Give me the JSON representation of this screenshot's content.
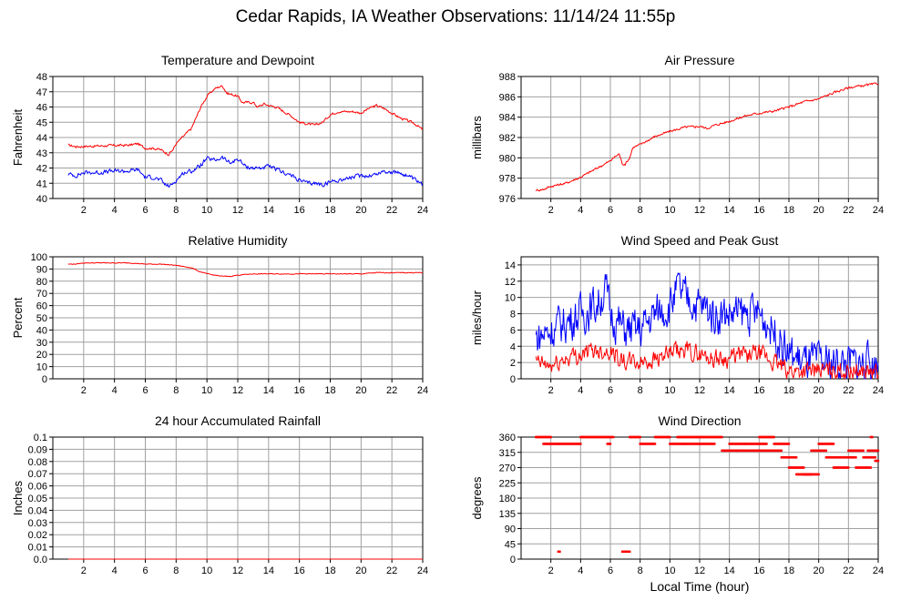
{
  "title": "Cedar Rapids, IA Weather Observations: 11/14/24 11:55p",
  "colors": {
    "red": "#ff0000",
    "blue": "#0000ff",
    "grid": "#a0a0a0",
    "frame": "#000000"
  },
  "chart_data": [
    {
      "type": "line",
      "title": "Temperature and Dewpoint",
      "ylabel": "Fahrenheit",
      "xlabel": "",
      "xlim": [
        0,
        24
      ],
      "ylim": [
        40,
        48
      ],
      "xticks": [
        "2",
        "4",
        "6",
        "8",
        "10",
        "12",
        "14",
        "16",
        "18",
        "20",
        "22",
        "24"
      ],
      "yticks": [
        "40",
        "41",
        "42",
        "43",
        "44",
        "45",
        "46",
        "47",
        "48"
      ],
      "series": [
        {
          "color": "#ff0000",
          "noise": 0.07,
          "x": [
            1,
            1.5,
            3,
            5,
            5.5,
            6,
            6.5,
            7,
            7.5,
            7.8,
            8,
            8.5,
            9,
            9.3,
            9.6,
            10,
            10.5,
            11,
            11.3,
            11.7,
            12,
            12.3,
            13,
            13.3,
            13.7,
            14,
            14.5,
            15,
            15.5,
            16,
            16.5,
            17,
            17.5,
            18,
            18.5,
            19,
            19.5,
            20,
            20.5,
            21,
            21.5,
            22,
            22.5,
            23,
            23.5,
            24
          ],
          "y": [
            43.5,
            43.4,
            43.45,
            43.5,
            43.6,
            43.3,
            43.3,
            43.2,
            42.9,
            43.2,
            43.6,
            44.1,
            44.6,
            45.3,
            46.0,
            46.7,
            47.2,
            47.4,
            46.9,
            46.8,
            46.7,
            46.3,
            46.3,
            46.0,
            46.2,
            46.1,
            46.0,
            45.7,
            45.4,
            45.0,
            44.9,
            44.8,
            45.0,
            45.5,
            45.7,
            45.7,
            45.7,
            45.6,
            45.9,
            46.1,
            45.9,
            45.6,
            45.3,
            45.1,
            44.9,
            44.5
          ]
        },
        {
          "color": "#0000ff",
          "noise": 0.12,
          "x": [
            1,
            1.5,
            2,
            3,
            4,
            5,
            5.5,
            6,
            6.5,
            7,
            7.3,
            7.6,
            8,
            8.5,
            9,
            9.5,
            10,
            10.5,
            11,
            11.5,
            12,
            12.5,
            13,
            13.5,
            14,
            14.5,
            15,
            15.5,
            16,
            16.5,
            17,
            17.5,
            18,
            18.5,
            19,
            19.5,
            20,
            20.5,
            21,
            21.5,
            22,
            22.5,
            23,
            23.5,
            24
          ],
          "y": [
            41.6,
            41.5,
            41.7,
            41.7,
            41.8,
            41.8,
            41.9,
            41.4,
            41.4,
            41.2,
            40.9,
            40.8,
            41.2,
            41.7,
            41.8,
            42.1,
            42.6,
            42.5,
            42.7,
            42.3,
            42.6,
            42.1,
            42.0,
            42.0,
            42.1,
            41.9,
            41.7,
            41.5,
            41.2,
            41.0,
            41.0,
            40.9,
            41.1,
            41.2,
            41.3,
            41.4,
            41.5,
            41.5,
            41.6,
            41.8,
            41.7,
            41.7,
            41.5,
            41.2,
            40.9
          ]
        }
      ]
    },
    {
      "type": "line",
      "title": "Air Pressure",
      "ylabel": "millibars",
      "xlabel": "",
      "xlim": [
        0,
        24
      ],
      "ylim": [
        976,
        988
      ],
      "xticks": [
        "2",
        "4",
        "6",
        "8",
        "10",
        "12",
        "14",
        "16",
        "18",
        "20",
        "22",
        "24"
      ],
      "yticks": [
        "976",
        "978",
        "980",
        "982",
        "984",
        "986",
        "988"
      ],
      "series": [
        {
          "color": "#ff0000",
          "noise": 0.1,
          "x": [
            1,
            1.5,
            2,
            3,
            4,
            5,
            5.5,
            6,
            6.3,
            6.6,
            6.8,
            7,
            7.3,
            7.5,
            8,
            8.5,
            9,
            10,
            11,
            12,
            12.5,
            13,
            14,
            15,
            16,
            17,
            18,
            19,
            20,
            21,
            22,
            23,
            24
          ],
          "y": [
            976.8,
            976.9,
            977.2,
            977.5,
            978.1,
            978.9,
            979.3,
            979.7,
            980.1,
            980.4,
            979.4,
            979.4,
            980.0,
            981.0,
            981.3,
            981.7,
            982.1,
            982.6,
            983.0,
            983.1,
            982.9,
            983.2,
            983.6,
            984.1,
            984.4,
            984.6,
            985.0,
            985.5,
            985.8,
            986.4,
            986.9,
            987.1,
            987.3
          ]
        }
      ]
    },
    {
      "type": "line",
      "title": "Relative Humidity",
      "ylabel": "Percent",
      "xlabel": "",
      "xlim": [
        0,
        24
      ],
      "ylim": [
        0,
        100
      ],
      "xticks": [
        "2",
        "4",
        "6",
        "8",
        "10",
        "12",
        "14",
        "16",
        "18",
        "20",
        "22",
        "24"
      ],
      "yticks": [
        "0",
        "10",
        "20",
        "30",
        "40",
        "50",
        "60",
        "70",
        "80",
        "90",
        "100"
      ],
      "series": [
        {
          "color": "#ff0000",
          "noise": 0.3,
          "x": [
            1,
            1.5,
            2,
            3,
            4,
            5,
            6,
            7,
            8,
            8.5,
            9,
            9.5,
            10,
            10.5,
            11,
            11.5,
            12,
            13,
            14,
            15,
            16,
            17,
            18,
            19,
            20,
            21,
            22,
            23,
            24
          ],
          "y": [
            94,
            94,
            95,
            95,
            95,
            95,
            94,
            94,
            93,
            92,
            91,
            88,
            86,
            85,
            84,
            84,
            85,
            86,
            86,
            86,
            86,
            86,
            86,
            86,
            86,
            87,
            87,
            87,
            87
          ]
        }
      ]
    },
    {
      "type": "line",
      "title": "Wind Speed and Peak Gust",
      "ylabel": "miles/hour",
      "xlabel": "",
      "xlim": [
        0,
        24
      ],
      "ylim": [
        0,
        15
      ],
      "xticks": [
        "2",
        "4",
        "6",
        "8",
        "10",
        "12",
        "14",
        "16",
        "18",
        "20",
        "22",
        "24"
      ],
      "yticks": [
        "0",
        "2",
        "4",
        "6",
        "8",
        "10",
        "12",
        "14"
      ],
      "series": [
        {
          "color": "#0000ff",
          "noise": 2.2,
          "x": [
            1,
            2,
            3,
            4,
            5,
            5.7,
            6,
            7,
            8,
            9,
            10,
            10.5,
            11,
            12,
            13,
            14,
            15,
            16,
            17,
            18,
            19,
            20,
            21,
            22,
            23,
            24
          ],
          "y": [
            5,
            6,
            7,
            8,
            9,
            11,
            8,
            6,
            6,
            8,
            9,
            11,
            10,
            9,
            8,
            8,
            8,
            8,
            6,
            3,
            2,
            2,
            2,
            2,
            2,
            2
          ]
        },
        {
          "color": "#ff0000",
          "noise": 1.0,
          "x": [
            1,
            2,
            3,
            4,
            5,
            6,
            7,
            8,
            9,
            10,
            11,
            12,
            13,
            14,
            15,
            16,
            17,
            18,
            19,
            20,
            21,
            22,
            23,
            24
          ],
          "y": [
            2,
            1.5,
            2.5,
            3,
            3.5,
            3.5,
            2,
            2,
            2.5,
            3,
            3.5,
            3,
            2.5,
            2.5,
            3,
            3,
            2,
            1,
            1,
            1,
            1,
            1,
            1,
            0.5
          ]
        }
      ]
    },
    {
      "type": "line",
      "title": "24 hour Accumulated Rainfall",
      "ylabel": "Inches",
      "xlabel": "",
      "xlim": [
        0,
        24
      ],
      "ylim": [
        0,
        0.1
      ],
      "xticks": [
        "2",
        "4",
        "6",
        "8",
        "10",
        "12",
        "14",
        "16",
        "18",
        "20",
        "22",
        "24"
      ],
      "yticks": [
        "0.0",
        "0.01",
        "0.02",
        "0.03",
        "0.04",
        "0.05",
        "0.06",
        "0.07",
        "0.08",
        "0.09",
        "0.1"
      ],
      "series": [
        {
          "color": "#ff0000",
          "noise": 0,
          "x": [
            1,
            24
          ],
          "y": [
            0,
            0
          ]
        }
      ]
    },
    {
      "type": "scatter",
      "title": "Wind Direction",
      "ylabel": "degrees",
      "xlabel": "Local Time (hour)",
      "xlim": [
        0,
        24
      ],
      "ylim": [
        0,
        360
      ],
      "xticks": [
        "2",
        "4",
        "6",
        "8",
        "10",
        "12",
        "14",
        "16",
        "18",
        "20",
        "22",
        "24"
      ],
      "yticks": [
        "0",
        "45",
        "90",
        "135",
        "180",
        "225",
        "270",
        "315",
        "360"
      ],
      "series": [
        {
          "color": "#ff0000",
          "segments": [
            [
              1,
              2,
              360
            ],
            [
              1.5,
              2.5,
              340
            ],
            [
              2.5,
              2.6,
              22
            ],
            [
              2.5,
              4,
              340
            ],
            [
              4,
              6.2,
              360
            ],
            [
              5.8,
              6,
              340
            ],
            [
              6.8,
              7.3,
              22
            ],
            [
              7.3,
              8,
              360
            ],
            [
              8,
              9,
              340
            ],
            [
              9,
              10,
              360
            ],
            [
              10,
              11,
              340
            ],
            [
              10.5,
              12,
              360
            ],
            [
              11,
              13,
              340
            ],
            [
              12,
              13.5,
              360
            ],
            [
              13.5,
              14.5,
              320
            ],
            [
              14,
              15,
              340
            ],
            [
              14.5,
              16,
              320
            ],
            [
              15,
              16.5,
              340
            ],
            [
              16,
              17,
              360
            ],
            [
              16,
              17.5,
              320
            ],
            [
              17,
              18,
              340
            ],
            [
              17.5,
              18.5,
              300
            ],
            [
              18,
              19,
              270
            ],
            [
              18.5,
              19.5,
              250
            ],
            [
              19,
              20,
              250
            ],
            [
              19.5,
              20.5,
              320
            ],
            [
              20,
              21,
              340
            ],
            [
              20.5,
              21.5,
              300
            ],
            [
              21,
              22,
              270
            ],
            [
              21.5,
              22.5,
              300
            ],
            [
              22,
              23,
              320
            ],
            [
              22.5,
              23.5,
              270
            ],
            [
              23,
              23.8,
              300
            ],
            [
              23.3,
              24,
              320
            ],
            [
              23.5,
              23.6,
              360
            ],
            [
              23.8,
              24,
              290
            ]
          ]
        }
      ]
    }
  ]
}
